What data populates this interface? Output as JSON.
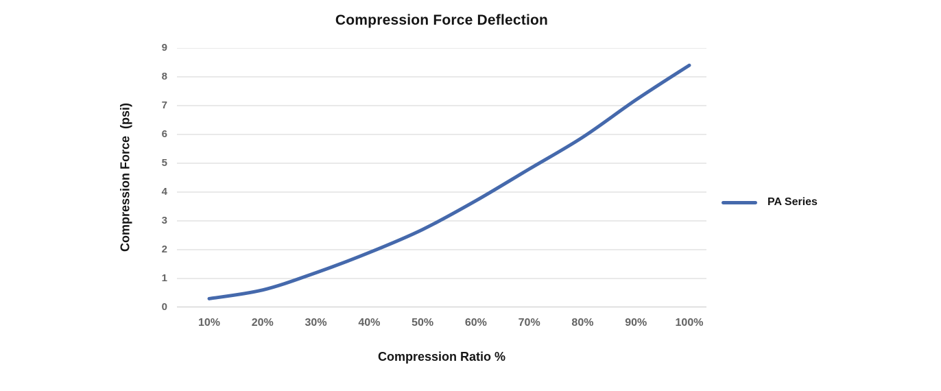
{
  "title": "Compression Force Deflection",
  "y_axis": {
    "title": "Compression Force  (psi)"
  },
  "x_axis": {
    "title": "Compression Ratio %"
  },
  "legend": {
    "label": "PA Series"
  },
  "colors": {
    "line": "#4569ac",
    "gridline": "#dcdcdc",
    "axis_line": "#b5b5b5",
    "tick_text": "#636363",
    "title_text": "#151515",
    "background": "#ffffff"
  },
  "chart_data": {
    "type": "line",
    "title": "Compression Force Deflection",
    "xlabel": "Compression Ratio %",
    "ylabel": "Compression Force (psi)",
    "categories": [
      "10%",
      "20%",
      "30%",
      "40%",
      "50%",
      "60%",
      "70%",
      "80%",
      "90%",
      "100%"
    ],
    "series": [
      {
        "name": "PA Series",
        "color": "#4569ac",
        "values": [
          0.3,
          0.6,
          1.2,
          1.9,
          2.7,
          3.7,
          4.8,
          5.9,
          7.2,
          8.4
        ]
      }
    ],
    "ylim": [
      0,
      9
    ],
    "y_tick_step": 1,
    "grid": "horizontal-only",
    "legend_position": "right",
    "line_width": 5,
    "smooth": true
  }
}
